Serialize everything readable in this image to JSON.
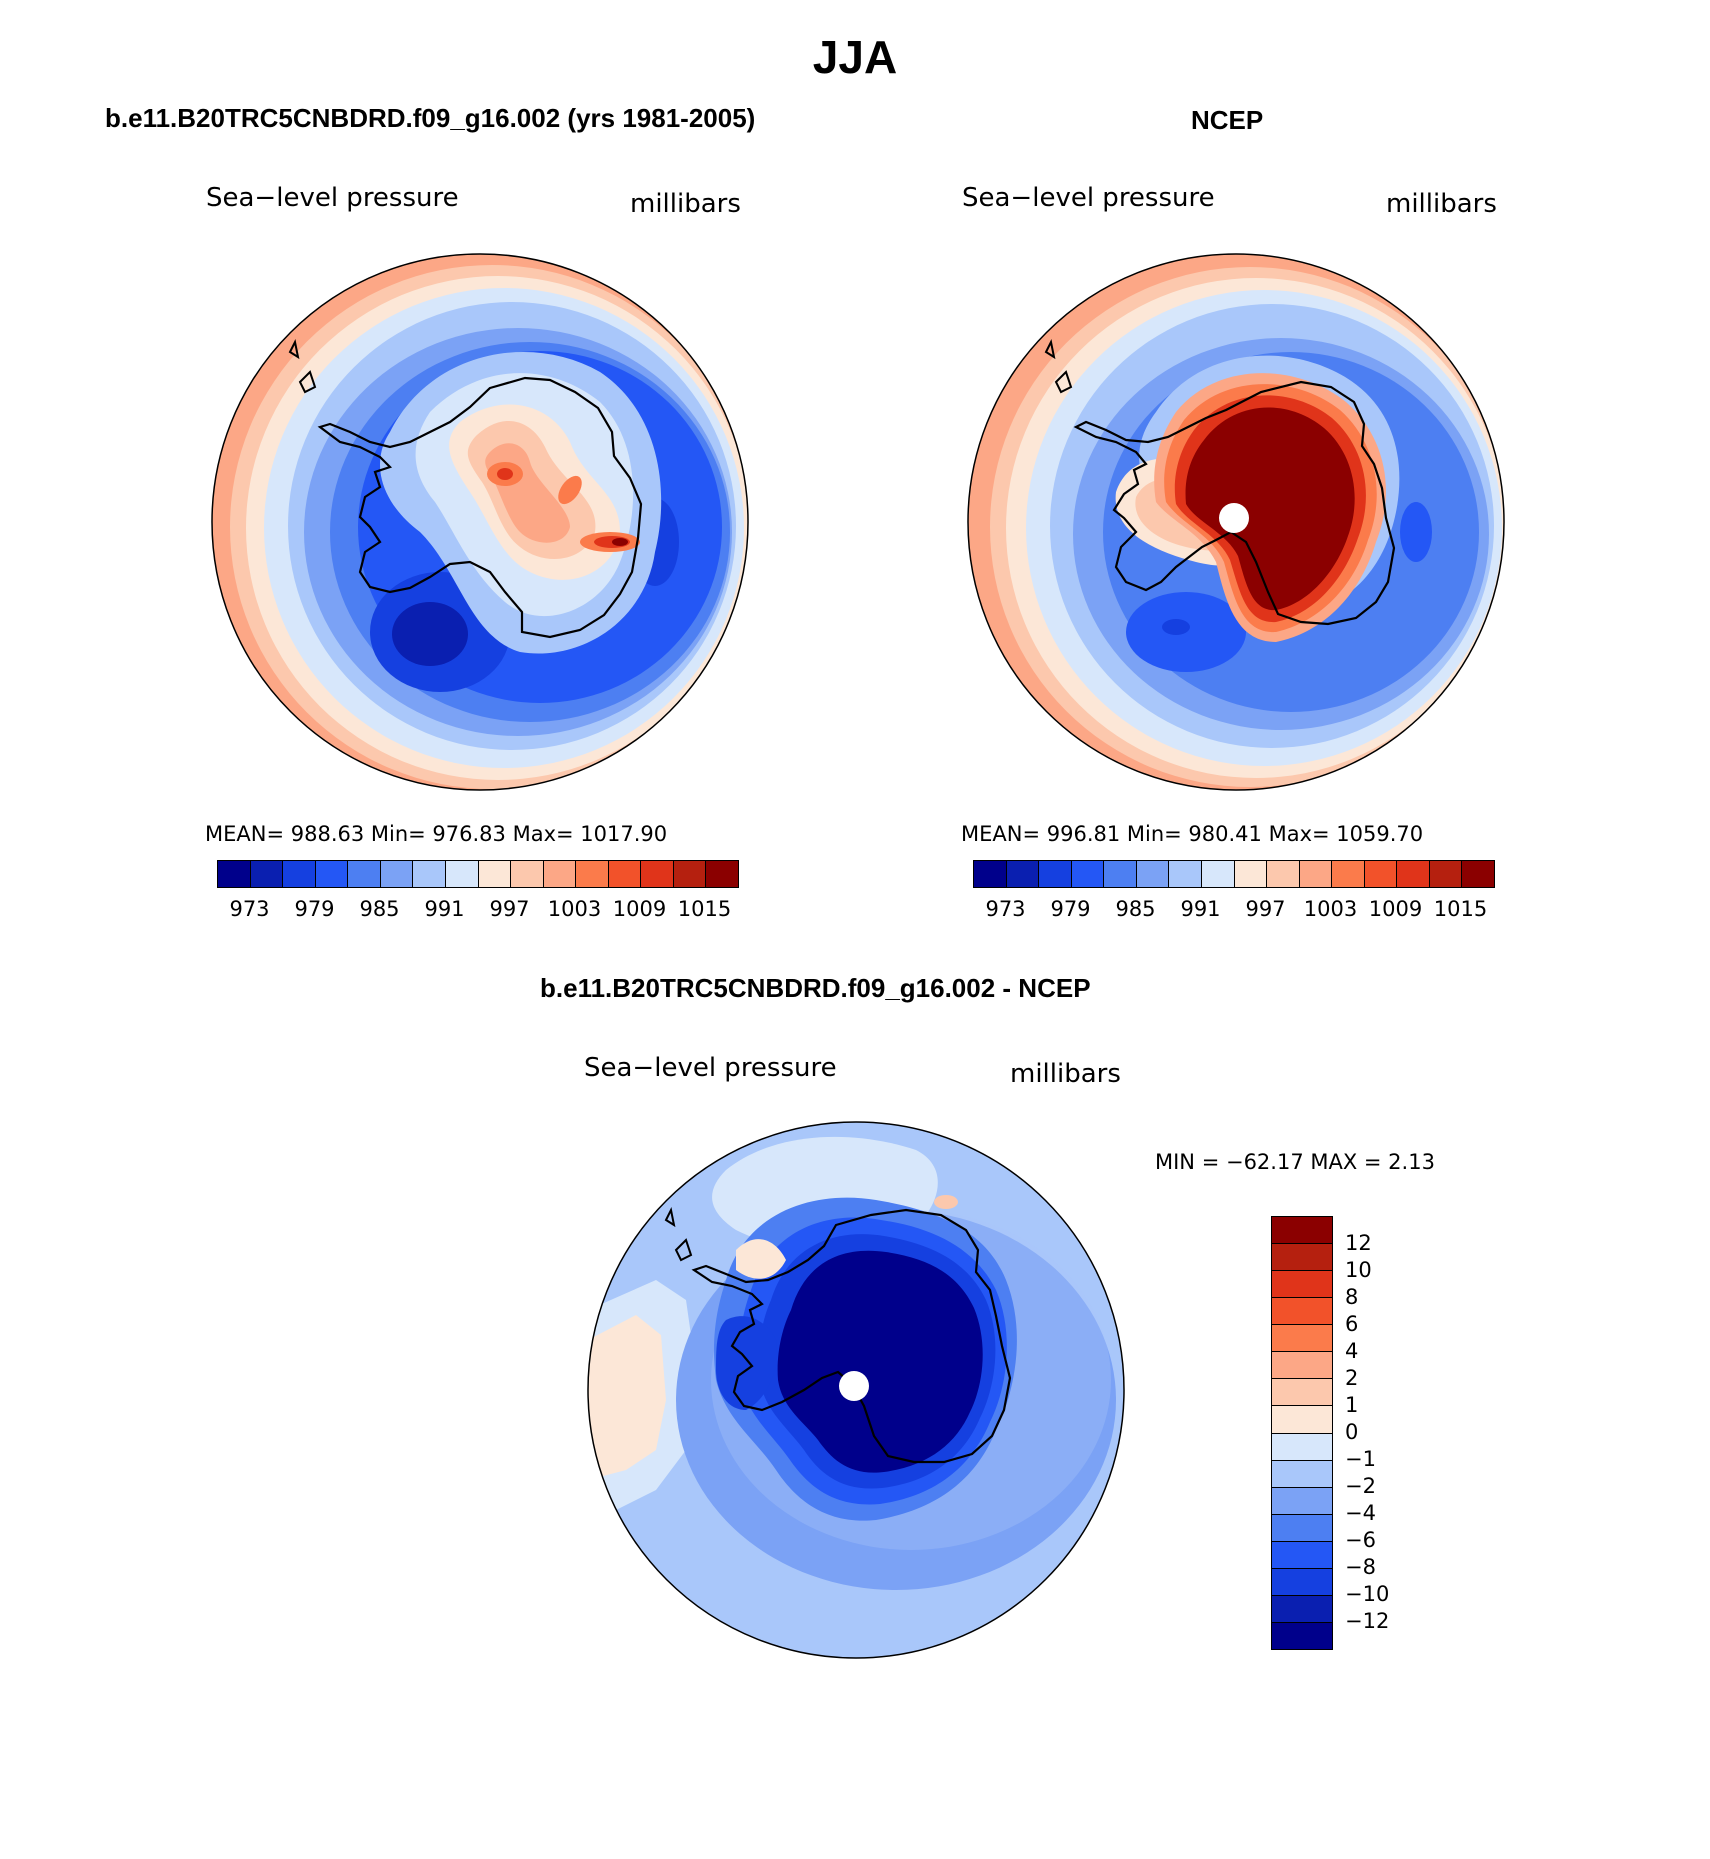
{
  "figure": {
    "title": "JJA",
    "panels": [
      {
        "title": "b.e11.B20TRC5CNBDRD.f09_g16.002 (yrs 1981-2005)",
        "left_label": "Sea−level pressure",
        "right_label": "millibars",
        "stats_text": "MEAN= 988.63   Min= 976.83   Max= 1017.90",
        "stats": {
          "mean": 988.63,
          "min": 976.83,
          "max": 1017.9
        },
        "colorbar_labels": [
          "973",
          "979",
          "985",
          "991",
          "997",
          "1003",
          "1009",
          "1015"
        ]
      },
      {
        "title": "NCEP",
        "left_label": "Sea−level pressure",
        "right_label": "millibars",
        "stats_text": "MEAN= 996.81   Min= 980.41   Max= 1059.70",
        "stats": {
          "mean": 996.81,
          "min": 980.41,
          "max": 1059.7
        },
        "colorbar_labels": [
          "973",
          "979",
          "985",
          "991",
          "997",
          "1003",
          "1009",
          "1015"
        ]
      },
      {
        "title": "b.e11.B20TRC5CNBDRD.f09_g16.002 - NCEP",
        "left_label": "Sea−level pressure",
        "right_label": "millibars",
        "stats_text": "MIN = −62.17 MAX =    2.13",
        "stats": {
          "min": -62.17,
          "max": 2.13
        },
        "colorbar_labels": [
          "12",
          "10",
          "8",
          "6",
          "4",
          "2",
          "1",
          "0",
          "−1",
          "−2",
          "−4",
          "−6",
          "−8",
          "−10",
          "−12"
        ]
      }
    ]
  },
  "colors": {
    "abs_scale": [
      "#00008b",
      "#0a1fb0",
      "#1540e0",
      "#2457f5",
      "#4d7ff2",
      "#7ba2f5",
      "#a9c7fa",
      "#d7e7fb",
      "#fce7d7",
      "#fcc8ad",
      "#fca786",
      "#fb7b4b",
      "#f2522a",
      "#e0341a",
      "#b5200f",
      "#8b0000"
    ],
    "diff_scale": [
      "#8b0000",
      "#b5200f",
      "#e0341a",
      "#f2522a",
      "#fb7b4b",
      "#fca786",
      "#fcc8ad",
      "#fce7d7",
      "#d7e7fb",
      "#a9c7fa",
      "#7ba2f5",
      "#4d7ff2",
      "#2457f5",
      "#1540e0",
      "#0a1fb0",
      "#00008b"
    ]
  }
}
